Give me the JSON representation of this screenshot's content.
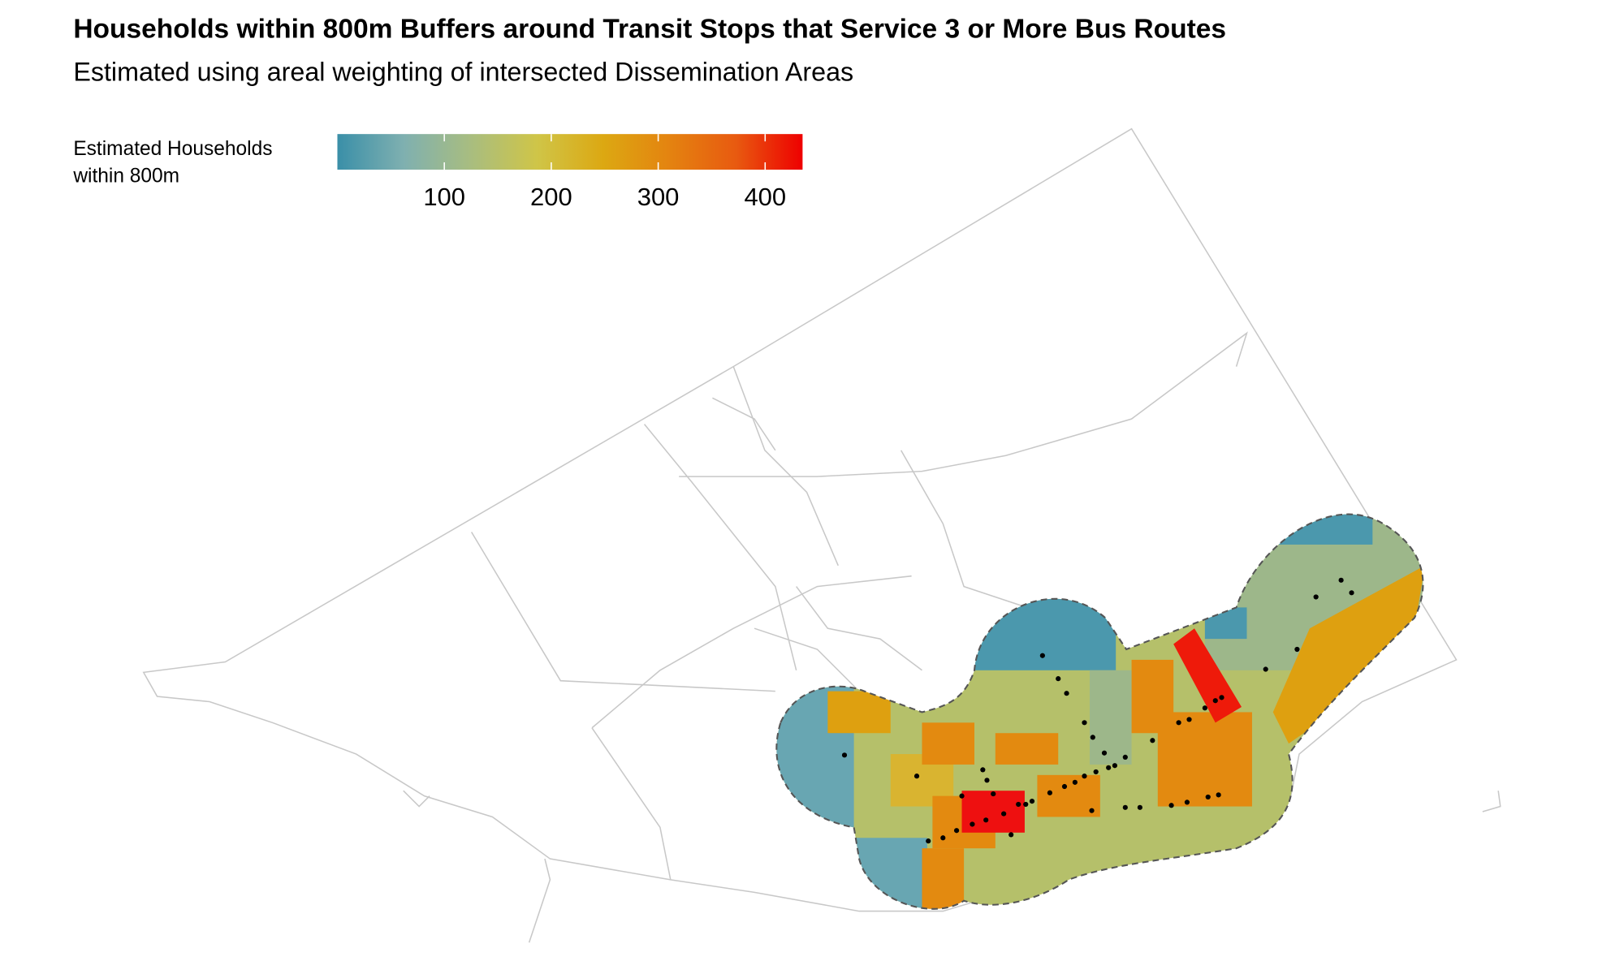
{
  "title": "Households within 800m Buffers around Transit Stops that Service 3 or More Bus Routes",
  "subtitle": "Estimated using areal weighting of intersected Dissemination Areas",
  "legend": {
    "title_lines": [
      "Estimated Households",
      "within 800m"
    ],
    "range": [
      0,
      435
    ],
    "ticks": [
      100,
      200,
      300,
      400
    ],
    "colors": [
      "#3a8fa8",
      "#7fb0b0",
      "#a8bd80",
      "#cfc548",
      "#dca812",
      "#e48310",
      "#e85a10",
      "#ee0000"
    ]
  }
}
